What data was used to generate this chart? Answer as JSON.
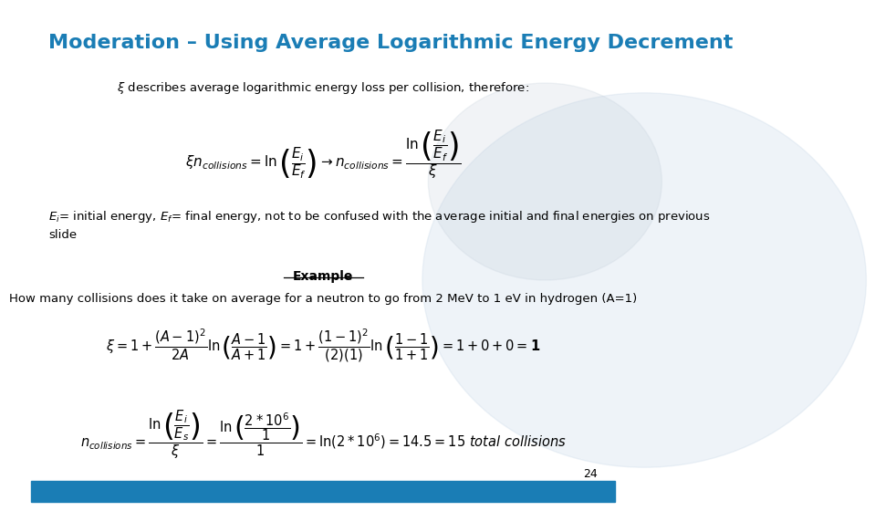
{
  "title": "Moderation – Using Average Logarithmic Energy Decrement",
  "title_color": "#1a7db5",
  "title_fontsize": 16,
  "background_color": "#ffffff",
  "slide_number": "24",
  "bottom_bar_color": "#1a7db5",
  "text_color": "#000000",
  "line1": "$\\xi$ describes average logarithmic energy loss per collision, therefore:",
  "eq1": "$\\xi n_{collisions} = \\ln\\left(\\dfrac{E_i}{E_f}\\right) \\rightarrow n_{collisions} = \\dfrac{\\ln\\left(\\dfrac{E_i}{E_f}\\right)}{\\xi}$",
  "line2": "$E_i$= initial energy, $E_f$= final energy, not to be confused with the average initial and final energies on previous\nslide",
  "example_label": "Example",
  "line3": "How many collisions does it take on average for a neutron to go from 2 MeV to 1 eV in hydrogen (A=1)",
  "eq2": "$\\xi = 1 + \\dfrac{(A-1)^2}{2A}\\ln\\left(\\dfrac{A-1}{A+1}\\right) = 1 + \\dfrac{(1-1)^2}{(2)(1)}\\ln\\left(\\dfrac{1-1}{1+1}\\right) = 1 + 0 + 0 = \\mathbf{1}$",
  "eq3": "$n_{collisions} = \\dfrac{\\ln\\left(\\dfrac{E_i}{E_s}\\right)}{\\xi} = \\dfrac{\\ln\\left(\\dfrac{2 * 10^6}{1}\\right)}{1} = \\ln(2 * 10^6) = 14.5 = 15\\ \\mathit{total\\ collisions}$"
}
